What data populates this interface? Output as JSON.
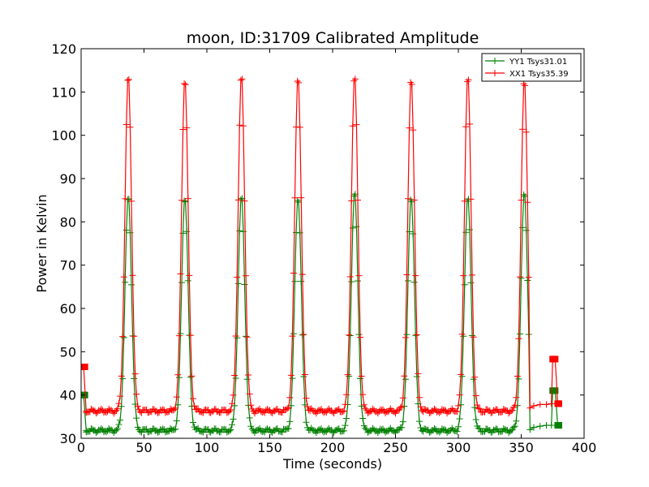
{
  "chart_data": {
    "type": "line",
    "title": "moon, ID:31709 Calibrated Amplitude",
    "xlabel": "Time (seconds)",
    "ylabel": "Power in Kelvin",
    "xlim": [
      0,
      400
    ],
    "ylim": [
      30,
      120
    ],
    "xticks": [
      0,
      50,
      100,
      150,
      200,
      250,
      300,
      350,
      400
    ],
    "yticks": [
      30,
      40,
      50,
      60,
      70,
      80,
      90,
      100,
      110,
      120
    ],
    "grid": false,
    "legend_position": "top-right",
    "sample_interval": 1,
    "series": [
      {
        "name": "YY1 Tsys31.01",
        "color": "#008000",
        "marker": "+",
        "baseline": 31.8,
        "peak_centers": [
          37.5,
          82.5,
          127.5,
          172.5,
          217.5,
          262.5,
          307.5,
          352.5
        ],
        "peak_values": [
          86,
          86,
          86,
          86,
          87,
          86,
          86,
          87
        ],
        "peak_width": 2.6,
        "start_points": [
          [
            1.5,
            40
          ],
          [
            2,
            40
          ]
        ],
        "tail_points": [
          [
            357,
            32
          ],
          [
            360,
            32.5
          ],
          [
            365,
            32.8
          ],
          [
            370,
            33
          ],
          [
            374,
            33
          ],
          [
            375,
            41
          ],
          [
            377,
            41
          ],
          [
            379,
            33
          ],
          [
            380,
            33
          ]
        ],
        "square_points": [
          [
            2,
            40
          ],
          [
            3,
            40
          ],
          [
            375,
            41
          ],
          [
            377,
            41
          ],
          [
            379,
            33
          ],
          [
            380,
            33
          ]
        ]
      },
      {
        "name": "XX1 Tsys35.39",
        "color": "#ff0000",
        "marker": "+",
        "baseline": 36.3,
        "peak_centers": [
          37.5,
          82.5,
          127.5,
          172.5,
          217.5,
          262.5,
          307.5,
          352.5
        ],
        "peak_values": [
          114,
          113.5,
          114,
          114,
          114,
          113.5,
          114,
          113
        ],
        "peak_width": 2.6,
        "start_points": [
          [
            1.5,
            46.5
          ],
          [
            2,
            46.5
          ]
        ],
        "tail_points": [
          [
            357,
            37
          ],
          [
            360,
            37.5
          ],
          [
            365,
            37.8
          ],
          [
            370,
            37.8
          ],
          [
            374,
            38
          ],
          [
            375,
            48.3
          ],
          [
            377,
            48.3
          ],
          [
            379,
            38
          ],
          [
            380,
            38
          ]
        ],
        "square_points": [
          [
            2,
            46.5
          ],
          [
            3,
            46.5
          ],
          [
            375,
            48.3
          ],
          [
            377,
            48.3
          ],
          [
            379,
            38
          ],
          [
            380,
            38
          ]
        ]
      }
    ]
  }
}
